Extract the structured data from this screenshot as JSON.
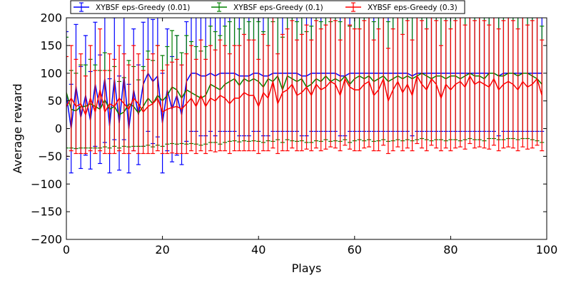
{
  "chart_data": {
    "type": "line",
    "title": "",
    "xlabel": "Plays",
    "ylabel": "Average reward",
    "xlim": [
      0,
      100
    ],
    "ylim": [
      -200,
      200
    ],
    "xticks": [
      0,
      20,
      40,
      60,
      80,
      100
    ],
    "yticks": [
      -200,
      -150,
      -100,
      -50,
      0,
      50,
      100,
      150,
      200
    ],
    "xtick_labels": [
      "0",
      "20",
      "40",
      "60",
      "80",
      "100"
    ],
    "ytick_labels": [
      "−200",
      "−150",
      "−100",
      "−50",
      "0",
      "50",
      "100",
      "150",
      "200"
    ],
    "grid": false,
    "legend_position": "top-left, above plot",
    "series": [
      {
        "name": "XYBSF eps-Greedy (0.01)",
        "color": "#0000ff",
        "errorbar": true,
        "x": [
          0,
          1,
          2,
          3,
          4,
          5,
          6,
          7,
          8,
          9,
          10,
          11,
          12,
          13,
          14,
          15,
          16,
          17,
          18,
          19,
          20,
          21,
          22,
          23,
          24,
          25,
          26,
          27,
          28,
          29,
          30,
          31,
          32,
          33,
          34,
          35,
          36,
          37,
          38,
          39,
          40,
          41,
          42,
          43,
          44,
          45,
          46,
          47,
          48,
          49,
          50,
          51,
          52,
          53,
          54,
          55,
          56,
          57,
          58,
          59,
          60,
          61,
          62,
          63,
          64,
          65,
          66,
          67,
          68,
          69,
          70,
          71,
          72,
          73,
          74,
          75,
          76,
          77,
          78,
          79,
          80,
          81,
          82,
          83,
          84,
          85,
          86,
          87,
          88,
          89,
          90,
          91,
          92,
          93,
          94,
          95,
          96,
          97,
          98,
          99
        ],
        "y": [
          60,
          0,
          76,
          20,
          60,
          15,
          80,
          35,
          90,
          5,
          90,
          10,
          95,
          0,
          70,
          25,
          80,
          100,
          85,
          95,
          10,
          70,
          35,
          60,
          25,
          85,
          100,
          100,
          95,
          95,
          100,
          95,
          100,
          100,
          100,
          100,
          95,
          95,
          95,
          100,
          100,
          95,
          95,
          100,
          100,
          100,
          100,
          100,
          100,
          95,
          95,
          100,
          100,
          100,
          100,
          100,
          100,
          95,
          95,
          100,
          100,
          100,
          100,
          100,
          100,
          100,
          100,
          100,
          100,
          100,
          100,
          100,
          95,
          100,
          100,
          100,
          100,
          100,
          100,
          100,
          100,
          100,
          100,
          100,
          100,
          100,
          100,
          100,
          100,
          100,
          95,
          100,
          100,
          100,
          100,
          100,
          100,
          100,
          100,
          100
        ],
        "err": [
          115,
          80,
          112,
          92,
          108,
          88,
          112,
          98,
          115,
          85,
          110,
          85,
          115,
          80,
          110,
          90,
          112,
          105,
          112,
          110,
          90,
          110,
          95,
          108,
          90,
          108,
          105,
          105,
          108,
          108,
          105,
          108,
          105,
          105,
          105,
          105,
          108,
          108,
          108,
          105,
          105,
          108,
          108,
          105,
          105,
          105,
          105,
          105,
          105,
          108,
          108,
          105,
          105,
          105,
          105,
          105,
          105,
          108,
          108,
          105,
          105,
          105,
          105,
          105,
          105,
          105,
          105,
          105,
          105,
          105,
          105,
          105,
          108,
          105,
          105,
          105,
          105,
          105,
          105,
          105,
          105,
          105,
          105,
          105,
          105,
          105,
          105,
          105,
          105,
          105,
          108,
          105,
          105,
          105,
          105,
          105,
          105,
          105,
          105,
          105
        ]
      },
      {
        "name": "XYBSF eps-Greedy (0.1)",
        "color": "#008000",
        "errorbar": true,
        "x": [
          0,
          1,
          2,
          3,
          4,
          5,
          6,
          7,
          8,
          9,
          10,
          11,
          12,
          13,
          14,
          15,
          16,
          17,
          18,
          19,
          20,
          21,
          22,
          23,
          24,
          25,
          26,
          27,
          28,
          29,
          30,
          31,
          32,
          33,
          34,
          35,
          36,
          37,
          38,
          39,
          40,
          41,
          42,
          43,
          44,
          45,
          46,
          47,
          48,
          49,
          50,
          51,
          52,
          53,
          54,
          55,
          56,
          57,
          58,
          59,
          60,
          61,
          62,
          63,
          64,
          65,
          66,
          67,
          68,
          69,
          70,
          71,
          72,
          73,
          74,
          75,
          76,
          77,
          78,
          79,
          80,
          81,
          82,
          83,
          84,
          85,
          86,
          87,
          88,
          89,
          90,
          91,
          92,
          93,
          94,
          95,
          96,
          97,
          98,
          99
        ],
        "y": [
          65,
          35,
          32,
          40,
          40,
          45,
          40,
          35,
          52,
          35,
          40,
          25,
          30,
          45,
          40,
          28,
          40,
          55,
          45,
          60,
          50,
          60,
          75,
          70,
          55,
          70,
          65,
          60,
          55,
          60,
          80,
          75,
          70,
          80,
          85,
          90,
          78,
          90,
          85,
          90,
          85,
          75,
          90,
          85,
          95,
          70,
          95,
          90,
          85,
          90,
          75,
          80,
          90,
          85,
          95,
          85,
          90,
          85,
          95,
          80,
          90,
          95,
          90,
          95,
          85,
          90,
          95,
          85,
          90,
          95,
          90,
          95,
          90,
          95,
          100,
          95,
          90,
          95,
          95,
          90,
          95,
          95,
          90,
          95,
          100,
          95,
          95,
          90,
          100,
          100,
          95,
          95,
          100,
          100,
          95,
          100,
          100,
          95,
          90,
          80
        ],
        "err": [
          100,
          70,
          68,
          75,
          75,
          80,
          75,
          70,
          85,
          70,
          72,
          60,
          62,
          78,
          72,
          60,
          72,
          85,
          78,
          90,
          82,
          88,
          102,
          98,
          82,
          98,
          92,
          88,
          85,
          88,
          105,
          100,
          98,
          105,
          108,
          112,
          102,
          112,
          108,
          112,
          108,
          100,
          112,
          108,
          115,
          95,
          115,
          112,
          108,
          112,
          100,
          105,
          112,
          108,
          115,
          108,
          112,
          108,
          115,
          105,
          112,
          115,
          112,
          115,
          108,
          112,
          115,
          108,
          112,
          115,
          112,
          115,
          112,
          115,
          118,
          115,
          112,
          115,
          115,
          112,
          115,
          115,
          112,
          115,
          118,
          115,
          115,
          112,
          118,
          118,
          115,
          115,
          118,
          118,
          115,
          118,
          118,
          115,
          112,
          105
        ]
      },
      {
        "name": "XYBSF eps-Greedy (0.3)",
        "color": "#ff0000",
        "errorbar": true,
        "x": [
          0,
          1,
          2,
          3,
          4,
          5,
          6,
          7,
          8,
          9,
          10,
          11,
          12,
          13,
          14,
          15,
          16,
          17,
          18,
          19,
          20,
          21,
          22,
          23,
          24,
          25,
          26,
          27,
          28,
          29,
          30,
          31,
          32,
          33,
          34,
          35,
          36,
          37,
          38,
          39,
          40,
          41,
          42,
          43,
          44,
          45,
          46,
          47,
          48,
          49,
          50,
          51,
          52,
          53,
          54,
          55,
          56,
          57,
          58,
          59,
          60,
          61,
          62,
          63,
          64,
          65,
          66,
          67,
          68,
          69,
          70,
          71,
          72,
          73,
          74,
          75,
          76,
          77,
          78,
          79,
          80,
          81,
          82,
          83,
          84,
          85,
          86,
          87,
          88,
          89,
          90,
          91,
          92,
          93,
          94,
          95,
          96,
          97,
          98,
          99
        ],
        "y": [
          40,
          55,
          40,
          45,
          25,
          55,
          30,
          70,
          30,
          45,
          40,
          55,
          45,
          35,
          55,
          45,
          30,
          40,
          45,
          55,
          30,
          35,
          38,
          40,
          35,
          45,
          55,
          40,
          60,
          40,
          55,
          50,
          60,
          55,
          45,
          55,
          55,
          65,
          60,
          60,
          40,
          65,
          55,
          85,
          45,
          65,
          70,
          80,
          60,
          65,
          75,
          60,
          80,
          70,
          75,
          85,
          80,
          60,
          90,
          75,
          70,
          70,
          80,
          85,
          60,
          70,
          90,
          50,
          70,
          85,
          65,
          80,
          60,
          95,
          80,
          70,
          90,
          80,
          55,
          80,
          70,
          80,
          85,
          75,
          95,
          80,
          85,
          80,
          75,
          90,
          70,
          80,
          85,
          80,
          70,
          85,
          75,
          80,
          90,
          60
        ],
        "err": [
          90,
          95,
          85,
          90,
          70,
          95,
          75,
          110,
          75,
          90,
          85,
          95,
          90,
          80,
          95,
          90,
          75,
          85,
          90,
          95,
          75,
          80,
          82,
          85,
          80,
          90,
          95,
          85,
          100,
          85,
          95,
          92,
          100,
          95,
          90,
          95,
          95,
          105,
          100,
          100,
          85,
          105,
          95,
          120,
          90,
          105,
          110,
          115,
          100,
          105,
          112,
          100,
          115,
          110,
          112,
          118,
          115,
          100,
          120,
          112,
          110,
          110,
          115,
          118,
          100,
          110,
          120,
          95,
          110,
          118,
          105,
          115,
          100,
          122,
          115,
          110,
          120,
          115,
          95,
          115,
          110,
          115,
          118,
          112,
          122,
          115,
          118,
          115,
          112,
          120,
          110,
          115,
          118,
          115,
          110,
          118,
          112,
          115,
          120,
          100
        ]
      }
    ]
  }
}
